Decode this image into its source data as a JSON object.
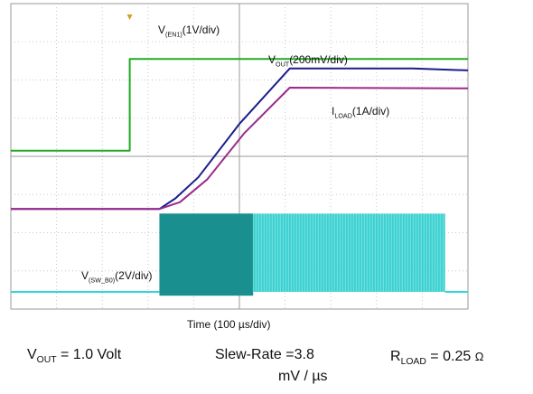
{
  "chart_data": {
    "type": "line",
    "x_axis": {
      "label": "Time (100 µs/div)",
      "divisions": 10
    },
    "y_axis": {
      "divisions": 8
    },
    "grid": true,
    "series": [
      {
        "name": "V(EN1)",
        "scale": "1V/div",
        "color": "#22aa22",
        "points": [
          [
            0,
            4.15
          ],
          [
            2.6,
            4.15
          ],
          [
            2.6,
            6.55
          ],
          [
            10,
            6.55
          ]
        ]
      },
      {
        "name": "VOUT",
        "scale": "200mV/div",
        "color": "#1c1c8c",
        "points": [
          [
            0,
            2.62
          ],
          [
            3.25,
            2.62
          ],
          [
            3.6,
            2.9
          ],
          [
            4.1,
            3.45
          ],
          [
            5,
            4.85
          ],
          [
            6.1,
            6.3
          ],
          [
            8.8,
            6.3
          ],
          [
            10,
            6.25
          ]
        ]
      },
      {
        "name": "ILOAD",
        "scale": "1A/div",
        "color": "#9a2a8a",
        "points": [
          [
            0,
            2.62
          ],
          [
            3.25,
            2.62
          ],
          [
            3.7,
            2.8
          ],
          [
            4.3,
            3.4
          ],
          [
            5.1,
            4.6
          ],
          [
            6.1,
            5.8
          ],
          [
            10,
            5.78
          ]
        ]
      },
      {
        "name": "V(SW_B0)",
        "scale": "2V/div",
        "color": "#33d6d6",
        "points": [
          [
            0,
            0.45
          ],
          [
            3.25,
            0.45
          ],
          [
            3.25,
            2.5
          ],
          [
            9.5,
            2.5
          ],
          [
            9.5,
            0.45
          ],
          [
            10,
            0.45
          ]
        ]
      }
    ]
  },
  "labels": {
    "en1_main": "V",
    "en1_sub": "(EN1)",
    "en1_scale": "(1V/div)",
    "vout_main": "V",
    "vout_sub": "OUT",
    "vout_scale": "(200mV/div)",
    "iload_main": "I",
    "iload_sub": "LOAD",
    "iload_scale": "(1A/div)",
    "sw_main": "V",
    "sw_sub": "(SW_B0)",
    "sw_scale": "(2V/div)",
    "time_label": "Time (100 µs/div)"
  },
  "footer": {
    "vout_main": "V",
    "vout_sub": "OUT",
    "vout_value": " = 1.0 Volt",
    "slew_text": "Slew-Rate =3.8",
    "slew_unit": "mV / µs",
    "rload_main": "R",
    "rload_sub": "LOAD",
    "rload_value": " = 0.25 ",
    "rload_unit": "Ω"
  }
}
